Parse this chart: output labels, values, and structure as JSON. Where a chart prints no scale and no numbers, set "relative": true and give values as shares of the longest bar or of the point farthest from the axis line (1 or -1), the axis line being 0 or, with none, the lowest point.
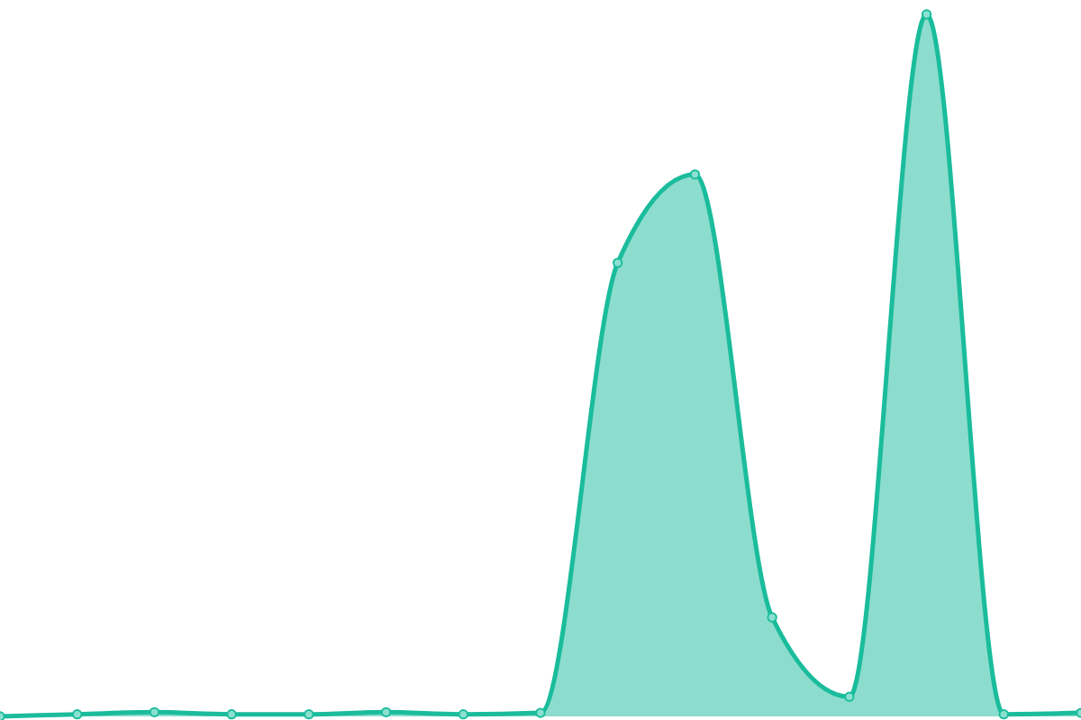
{
  "chart_data": {
    "type": "area",
    "relative": true,
    "marker": "circle",
    "categories": [
      null,
      null,
      null,
      null,
      null,
      null,
      null,
      null,
      null,
      null,
      null,
      null,
      null,
      null,
      null
    ],
    "series": [
      {
        "color": "#1abc9c",
        "values": [
          0,
          0.003,
          0.006,
          0.003,
          0.003,
          0.006,
          0.003,
          0.005,
          0.646,
          0.772,
          0.141,
          0.028,
          1,
          0.003,
          0.005
        ]
      }
    ]
  }
}
